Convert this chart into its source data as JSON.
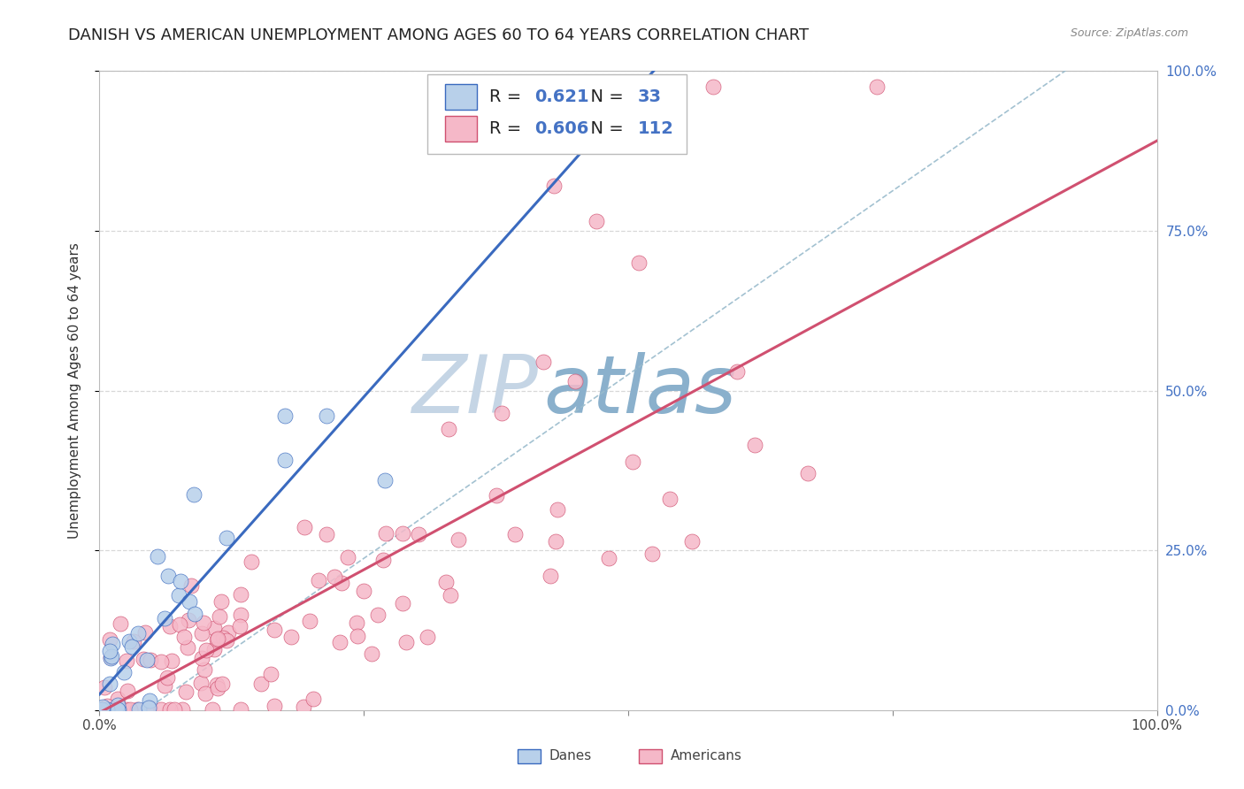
{
  "title": "DANISH VS AMERICAN UNEMPLOYMENT AMONG AGES 60 TO 64 YEARS CORRELATION CHART",
  "source": "Source: ZipAtlas.com",
  "ylabel": "Unemployment Among Ages 60 to 64 years",
  "xlim": [
    0,
    1
  ],
  "ylim": [
    0,
    1
  ],
  "danes_R": 0.621,
  "danes_N": 33,
  "americans_R": 0.606,
  "americans_N": 112,
  "danes_color": "#b8d0ea",
  "americans_color": "#f5b8c8",
  "danes_line_color": "#3a6abf",
  "americans_line_color": "#d05070",
  "watermark_zip_color": "#c5d5e5",
  "watermark_atlas_color": "#8ab0cc",
  "title_fontsize": 13,
  "label_fontsize": 11,
  "tick_fontsize": 11,
  "background_color": "#ffffff",
  "grid_color": "#d8d8d8",
  "right_tick_color": "#4472c4"
}
